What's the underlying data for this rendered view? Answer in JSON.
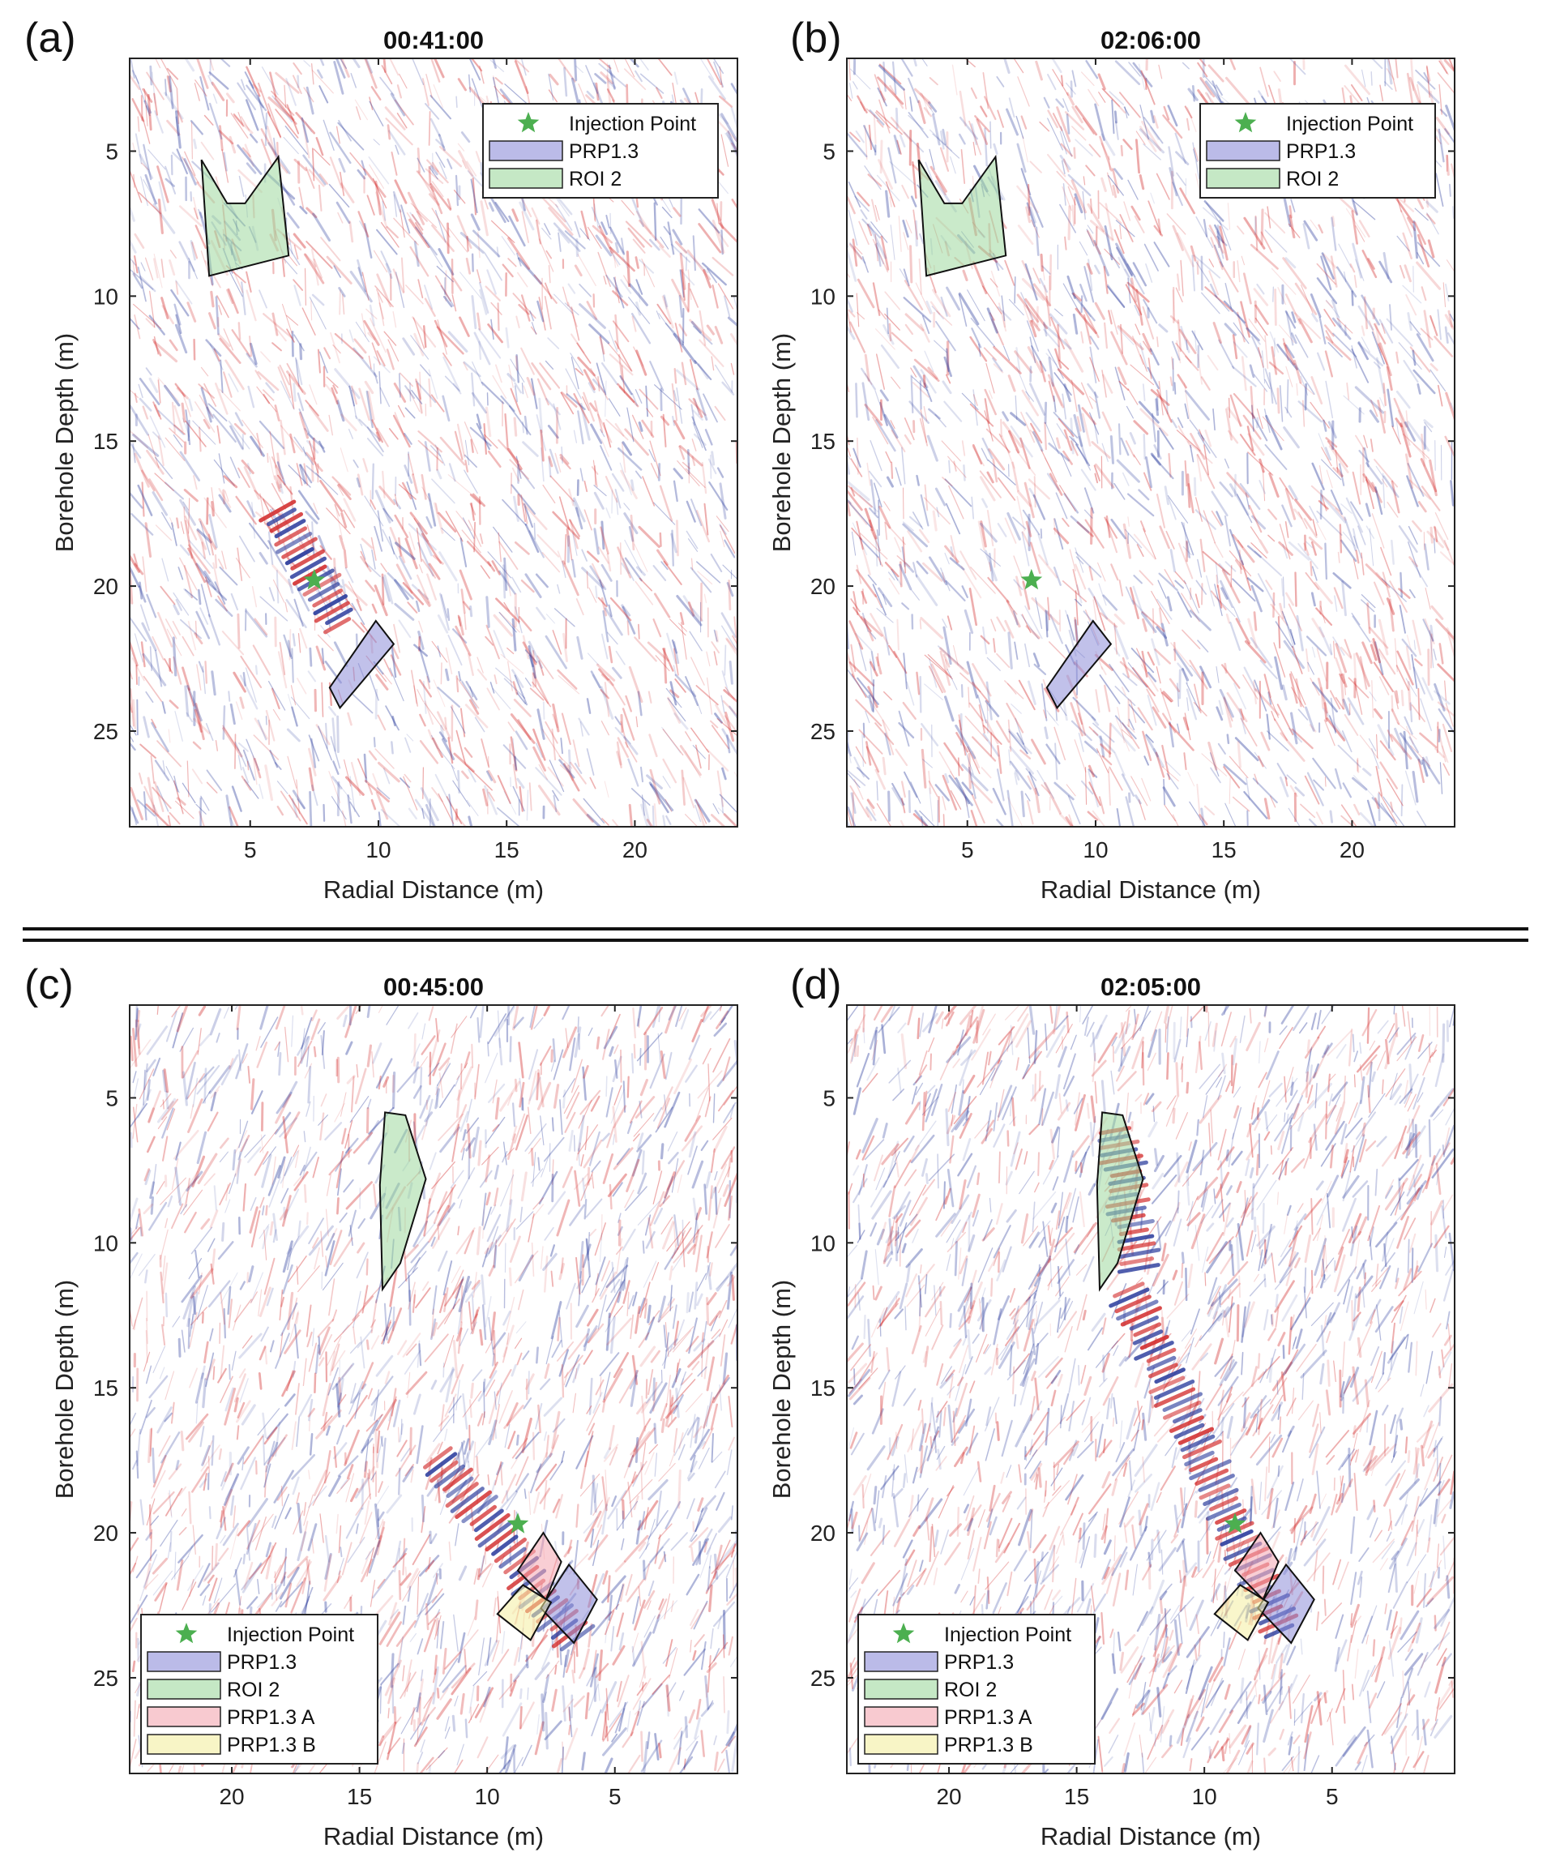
{
  "chart_data": [
    {
      "type": "heatmap",
      "panel_label": "(a)",
      "title": "00:41:00",
      "xlabel": "Radial Distance (m)",
      "ylabel": "Borehole Depth (m)",
      "xlim": [
        0.3,
        24
      ],
      "ylim": [
        1.8,
        28.3
      ],
      "x_reversed": false,
      "y_reversed": true,
      "xticks": [
        5,
        10,
        15,
        20
      ],
      "yticks": [
        5,
        10,
        15,
        20,
        25
      ],
      "legend_position": "top-right",
      "legend": [
        {
          "label": "Injection Point",
          "kind": "star",
          "color": "#4CAF50"
        },
        {
          "label": "PRP1.3",
          "kind": "patch",
          "color": "#8E8ED8"
        },
        {
          "label": "ROI 2",
          "kind": "patch",
          "color": "#9FD89F"
        }
      ],
      "injection_point": [
        7.5,
        19.8
      ],
      "regions": [
        {
          "name": "ROI 2",
          "color": "#9FD89F",
          "points": [
            [
              3.1,
              5.3
            ],
            [
              4.1,
              6.8
            ],
            [
              4.8,
              6.8
            ],
            [
              6.1,
              5.2
            ],
            [
              6.5,
              8.6
            ],
            [
              3.4,
              9.3
            ]
          ]
        },
        {
          "name": "PRP1.3",
          "color": "#8E8ED8",
          "points": [
            [
              9.9,
              21.2
            ],
            [
              10.6,
              22.0
            ],
            [
              8.5,
              24.2
            ],
            [
              8.1,
              23.5
            ]
          ]
        }
      ],
      "anomalies": [
        {
          "x": [
            6.0,
            8.6
          ],
          "y": [
            17.3,
            21.4
          ],
          "strength": 1.0
        }
      ]
    },
    {
      "type": "heatmap",
      "panel_label": "(b)",
      "title": "02:06:00",
      "xlabel": "Radial Distance (m)",
      "ylabel": "Borehole Depth (m)",
      "xlim": [
        0.3,
        24
      ],
      "ylim": [
        1.8,
        28.3
      ],
      "x_reversed": false,
      "y_reversed": true,
      "xticks": [
        5,
        10,
        15,
        20
      ],
      "yticks": [
        5,
        10,
        15,
        20,
        25
      ],
      "legend_position": "top-right",
      "legend": [
        {
          "label": "Injection Point",
          "kind": "star",
          "color": "#4CAF50"
        },
        {
          "label": "PRP1.3",
          "kind": "patch",
          "color": "#8E8ED8"
        },
        {
          "label": "ROI 2",
          "kind": "patch",
          "color": "#9FD89F"
        }
      ],
      "injection_point": [
        7.5,
        19.8
      ],
      "regions": [
        {
          "name": "ROI 2",
          "color": "#9FD89F",
          "points": [
            [
              3.1,
              5.3
            ],
            [
              4.1,
              6.8
            ],
            [
              4.8,
              6.8
            ],
            [
              6.1,
              5.2
            ],
            [
              6.5,
              8.6
            ],
            [
              3.4,
              9.3
            ]
          ]
        },
        {
          "name": "PRP1.3",
          "color": "#8E8ED8",
          "points": [
            [
              9.9,
              21.2
            ],
            [
              10.6,
              22.0
            ],
            [
              8.5,
              24.2
            ],
            [
              8.1,
              23.5
            ]
          ]
        }
      ],
      "anomalies": []
    },
    {
      "type": "heatmap",
      "panel_label": "(c)",
      "title": "00:45:00",
      "xlabel": "Radial Distance (m)",
      "ylabel": "Borehole Depth (m)",
      "xlim": [
        0.2,
        24
      ],
      "ylim": [
        1.8,
        28.3
      ],
      "x_reversed": true,
      "y_reversed": true,
      "xticks": [
        20,
        15,
        10,
        5
      ],
      "yticks": [
        5,
        10,
        15,
        20,
        25
      ],
      "legend_position": "bottom-left",
      "legend": [
        {
          "label": "Injection Point",
          "kind": "star",
          "color": "#4CAF50"
        },
        {
          "label": "PRP1.3",
          "kind": "patch",
          "color": "#8E8ED8"
        },
        {
          "label": "ROI 2",
          "kind": "patch",
          "color": "#9FD89F"
        },
        {
          "label": "PRP1.3 A",
          "kind": "patch",
          "color": "#F4A6B0"
        },
        {
          "label": "PRP1.3 B",
          "kind": "patch",
          "color": "#F4EFA0"
        }
      ],
      "injection_point": [
        8.8,
        19.7
      ],
      "regions": [
        {
          "name": "ROI 2",
          "color": "#9FD89F",
          "points": [
            [
              14.0,
              5.5
            ],
            [
              13.2,
              5.6
            ],
            [
              12.4,
              7.8
            ],
            [
              13.4,
              10.7
            ],
            [
              14.1,
              11.6
            ],
            [
              14.2,
              8.0
            ]
          ]
        },
        {
          "name": "PRP1.3 A",
          "color": "#F4A6B0",
          "points": [
            [
              7.8,
              20.0
            ],
            [
              7.1,
              21.0
            ],
            [
              7.7,
              22.3
            ],
            [
              8.8,
              21.3
            ]
          ]
        },
        {
          "name": "PRP1.3",
          "color": "#8E8ED8",
          "points": [
            [
              6.8,
              21.1
            ],
            [
              5.7,
              22.3
            ],
            [
              6.6,
              23.8
            ],
            [
              7.9,
              22.6
            ]
          ]
        },
        {
          "name": "PRP1.3 B",
          "color": "#F4EFA0",
          "points": [
            [
              8.6,
              21.8
            ],
            [
              7.5,
              22.4
            ],
            [
              8.3,
              23.7
            ],
            [
              9.6,
              22.8
            ]
          ]
        }
      ],
      "anomalies": [
        {
          "x": [
            12.0,
            6.5
          ],
          "y": [
            17.3,
            23.8
          ],
          "strength": 0.9
        }
      ]
    },
    {
      "type": "heatmap",
      "panel_label": "(d)",
      "title": "02:05:00",
      "xlabel": "Radial Distance (m)",
      "ylabel": "Borehole Depth (m)",
      "xlim": [
        0.2,
        24
      ],
      "ylim": [
        1.8,
        28.3
      ],
      "x_reversed": true,
      "y_reversed": true,
      "xticks": [
        20,
        15,
        10,
        5
      ],
      "yticks": [
        5,
        10,
        15,
        20,
        25
      ],
      "legend_position": "bottom-left",
      "legend": [
        {
          "label": "Injection Point",
          "kind": "star",
          "color": "#4CAF50"
        },
        {
          "label": "PRP1.3",
          "kind": "patch",
          "color": "#8E8ED8"
        },
        {
          "label": "ROI 2",
          "kind": "patch",
          "color": "#9FD89F"
        },
        {
          "label": "PRP1.3 A",
          "kind": "patch",
          "color": "#F4A6B0"
        },
        {
          "label": "PRP1.3 B",
          "kind": "patch",
          "color": "#F4EFA0"
        }
      ],
      "injection_point": [
        8.8,
        19.7
      ],
      "regions": [
        {
          "name": "ROI 2",
          "color": "#9FD89F",
          "points": [
            [
              14.0,
              5.5
            ],
            [
              13.2,
              5.6
            ],
            [
              12.4,
              7.8
            ],
            [
              13.4,
              10.7
            ],
            [
              14.1,
              11.6
            ],
            [
              14.2,
              8.0
            ]
          ]
        },
        {
          "name": "PRP1.3 A",
          "color": "#F4A6B0",
          "points": [
            [
              7.8,
              20.0
            ],
            [
              7.1,
              21.0
            ],
            [
              7.7,
              22.3
            ],
            [
              8.8,
              21.3
            ]
          ]
        },
        {
          "name": "PRP1.3",
          "color": "#8E8ED8",
          "points": [
            [
              6.8,
              21.1
            ],
            [
              5.7,
              22.3
            ],
            [
              6.6,
              23.8
            ],
            [
              7.9,
              22.6
            ]
          ]
        },
        {
          "name": "PRP1.3 B",
          "color": "#F4EFA0",
          "points": [
            [
              8.6,
              21.8
            ],
            [
              7.5,
              22.4
            ],
            [
              8.3,
              23.7
            ],
            [
              9.6,
              22.8
            ]
          ]
        }
      ],
      "anomalies": [
        {
          "x": [
            13.5,
            12.5
          ],
          "y": [
            6.0,
            11.0
          ],
          "strength": 0.9
        },
        {
          "x": [
            13.0,
            7.0
          ],
          "y": [
            11.5,
            23.5
          ],
          "strength": 0.9
        }
      ]
    }
  ],
  "colors": {
    "positive": "#D32F2F",
    "negative": "#2E3F9E",
    "star": "#4CAF50",
    "outline": "#111111"
  }
}
